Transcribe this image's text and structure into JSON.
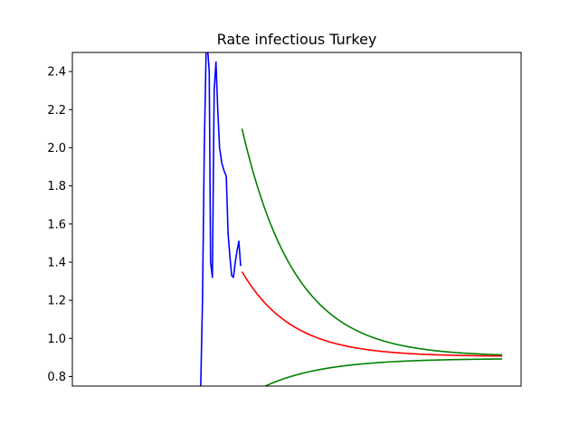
{
  "chart_data": {
    "type": "line",
    "title": "Rate infectious Turkey",
    "xlabel": "",
    "ylabel": "",
    "ylim": [
      0.75,
      2.5
    ],
    "xlim": [
      0,
      100
    ],
    "yticks": [
      "0.8",
      "1.0",
      "1.2",
      "1.4",
      "1.6",
      "1.8",
      "2.0",
      "2.2",
      "2.4"
    ],
    "ytick_values": [
      0.8,
      1.0,
      1.2,
      1.4,
      1.6,
      1.8,
      2.0,
      2.2,
      2.4
    ],
    "xticks_shown": false,
    "grid": false,
    "legend": "none",
    "series": [
      {
        "color": "#0000ff",
        "points": [
          [
            28.6,
            0.75
          ],
          [
            29.0,
            1.2
          ],
          [
            29.4,
            2.0
          ],
          [
            29.8,
            2.5
          ],
          [
            30.2,
            2.5
          ],
          [
            30.5,
            2.4
          ],
          [
            30.8,
            1.4
          ],
          [
            31.2,
            1.32
          ],
          [
            31.6,
            2.3
          ],
          [
            32.0,
            2.45
          ],
          [
            32.4,
            2.2
          ],
          [
            32.8,
            2.0
          ],
          [
            33.3,
            1.92
          ],
          [
            33.8,
            1.88
          ],
          [
            34.3,
            1.85
          ],
          [
            34.7,
            1.55
          ],
          [
            35.1,
            1.43
          ],
          [
            35.5,
            1.33
          ],
          [
            35.9,
            1.32
          ],
          [
            36.3,
            1.4
          ],
          [
            36.7,
            1.46
          ],
          [
            37.1,
            1.51
          ],
          [
            37.5,
            1.38
          ]
        ]
      },
      {
        "color": "#ff0000",
        "start_x": 37.8,
        "end_x": 95.8,
        "start_y": 1.35,
        "asymptote": 0.905,
        "decay": 0.09
      },
      {
        "color": "#008000",
        "start_x": 37.8,
        "end_x": 95.8,
        "start_y": 2.1,
        "asymptote": 0.905,
        "decay": 0.085
      },
      {
        "color": "#008000",
        "start_x": 43.0,
        "end_x": 95.8,
        "start_y": 0.75,
        "asymptote": 0.895,
        "decay": 0.075
      }
    ]
  }
}
